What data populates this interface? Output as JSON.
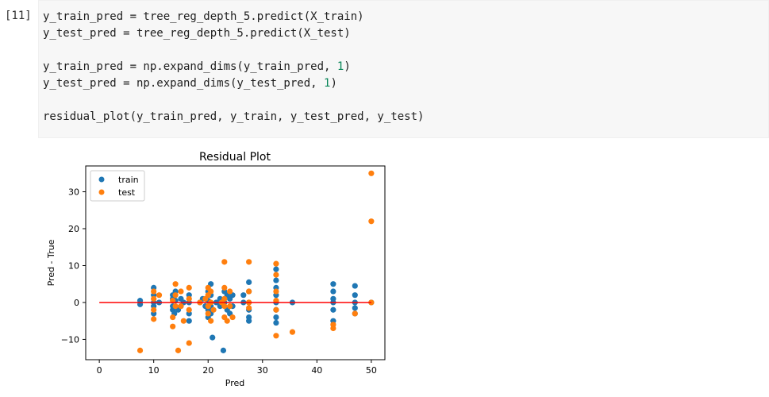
{
  "cell": {
    "prompt": "[11]",
    "code_lines": [
      {
        "segments": [
          {
            "t": "y_train_pred = tree_reg_depth_5.predict(X_train)"
          }
        ]
      },
      {
        "segments": [
          {
            "t": "y_test_pred = tree_reg_depth_5.predict(X_test)"
          }
        ]
      },
      {
        "blank": true
      },
      {
        "segments": [
          {
            "t": "y_train_pred = np.expand_dims(y_train_pred, "
          },
          {
            "t": "1",
            "num": true
          },
          {
            "t": ")"
          }
        ]
      },
      {
        "segments": [
          {
            "t": "y_test_pred = np.expand_dims(y_test_pred, "
          },
          {
            "t": "1",
            "num": true
          },
          {
            "t": ")"
          }
        ]
      },
      {
        "blank": true
      },
      {
        "segments": [
          {
            "t": "residual_plot(y_train_pred, y_train, y_test_pred, y_test)"
          }
        ]
      }
    ]
  },
  "colors": {
    "train": "#1f77b4",
    "test": "#ff7f0e",
    "zero_line": "#ff0000",
    "code_bg": "#f7f7f7"
  },
  "chart_data": {
    "type": "scatter",
    "title": "Residual Plot",
    "xlabel": "Pred",
    "ylabel": "Pred - True",
    "xlim": [
      -2.5,
      52.5
    ],
    "ylim": [
      -15.5,
      37
    ],
    "xticks": [
      0,
      10,
      20,
      30,
      40,
      50
    ],
    "yticks": [
      -10,
      0,
      10,
      20,
      30
    ],
    "grid": false,
    "legend_position": "top-left",
    "hline": {
      "y": 0,
      "xmin": 0,
      "xmax": 50
    },
    "series": [
      {
        "name": "train",
        "points": [
          [
            7.5,
            0.5
          ],
          [
            7.5,
            -0.5
          ],
          [
            10,
            4
          ],
          [
            10,
            2
          ],
          [
            10,
            0
          ],
          [
            10,
            -1
          ],
          [
            10,
            -3
          ],
          [
            11,
            0
          ],
          [
            13.5,
            2
          ],
          [
            13.5,
            1
          ],
          [
            13.5,
            -1
          ],
          [
            13.5,
            -2
          ],
          [
            13.8,
            -3
          ],
          [
            14,
            3
          ],
          [
            14,
            0.5
          ],
          [
            14.5,
            -2
          ],
          [
            15,
            1
          ],
          [
            15,
            -1
          ],
          [
            15.5,
            0
          ],
          [
            16.5,
            2
          ],
          [
            16.5,
            0
          ],
          [
            16.5,
            -3
          ],
          [
            16.5,
            -5
          ],
          [
            18.5,
            0
          ],
          [
            19,
            1
          ],
          [
            19.5,
            -1
          ],
          [
            20,
            3
          ],
          [
            20,
            0.5
          ],
          [
            20,
            -2
          ],
          [
            20,
            -4
          ],
          [
            20.5,
            5
          ],
          [
            20.5,
            2
          ],
          [
            20.5,
            -1
          ],
          [
            20.5,
            -3
          ],
          [
            20.8,
            -9.5
          ],
          [
            21.5,
            0
          ],
          [
            22.2,
            1
          ],
          [
            22.2,
            -1
          ],
          [
            22.8,
            -13
          ],
          [
            23,
            3
          ],
          [
            23,
            0
          ],
          [
            23.5,
            2
          ],
          [
            23.5,
            -2
          ],
          [
            24,
            1
          ],
          [
            24,
            -3
          ],
          [
            24.5,
            2
          ],
          [
            24.5,
            -1
          ],
          [
            26.5,
            2
          ],
          [
            26.5,
            0
          ],
          [
            27.5,
            5.5
          ],
          [
            27.5,
            3
          ],
          [
            27.5,
            0
          ],
          [
            27.5,
            -2
          ],
          [
            27.5,
            -4
          ],
          [
            27.5,
            -5
          ],
          [
            32.5,
            9
          ],
          [
            32.5,
            6
          ],
          [
            32.5,
            4
          ],
          [
            32.5,
            2
          ],
          [
            32.5,
            0
          ],
          [
            32.5,
            -2
          ],
          [
            32.5,
            -4
          ],
          [
            32.5,
            -5.5
          ],
          [
            35.5,
            0
          ],
          [
            43,
            5
          ],
          [
            43,
            3
          ],
          [
            43,
            1
          ],
          [
            43,
            0
          ],
          [
            43,
            -2
          ],
          [
            43,
            -5
          ],
          [
            47,
            4.5
          ],
          [
            47,
            2
          ],
          [
            47,
            0
          ],
          [
            47,
            -1.5
          ],
          [
            47,
            -3
          ],
          [
            50,
            0
          ]
        ]
      },
      {
        "name": "test",
        "points": [
          [
            7.5,
            -13
          ],
          [
            10,
            3
          ],
          [
            10,
            1
          ],
          [
            10,
            -2
          ],
          [
            10,
            -4.5
          ],
          [
            11,
            2
          ],
          [
            13.5,
            0.5
          ],
          [
            13.5,
            -4
          ],
          [
            13.5,
            -6.5
          ],
          [
            14,
            5
          ],
          [
            14,
            2
          ],
          [
            14,
            -1
          ],
          [
            14.5,
            -13
          ],
          [
            15,
            3
          ],
          [
            15,
            -1
          ],
          [
            15.5,
            -5
          ],
          [
            16.5,
            4
          ],
          [
            16.5,
            1
          ],
          [
            16.5,
            -2
          ],
          [
            16.5,
            -11
          ],
          [
            18.5,
            0
          ],
          [
            19.5,
            1
          ],
          [
            20,
            4
          ],
          [
            20,
            2
          ],
          [
            20,
            -1
          ],
          [
            20,
            -3
          ],
          [
            20.5,
            3
          ],
          [
            20.5,
            0
          ],
          [
            20.5,
            -5
          ],
          [
            21,
            -2
          ],
          [
            22.5,
            0
          ],
          [
            23,
            11
          ],
          [
            23,
            4
          ],
          [
            23,
            1
          ],
          [
            23,
            -1
          ],
          [
            23,
            -4
          ],
          [
            23.5,
            -5
          ],
          [
            24,
            3
          ],
          [
            24,
            -1
          ],
          [
            24.5,
            -4
          ],
          [
            27.5,
            11
          ],
          [
            27.5,
            3
          ],
          [
            27.5,
            0
          ],
          [
            27.5,
            -1.5
          ],
          [
            32.5,
            10.5
          ],
          [
            32.5,
            7.5
          ],
          [
            32.5,
            3
          ],
          [
            32.5,
            0.5
          ],
          [
            32.5,
            -2
          ],
          [
            32.5,
            -9
          ],
          [
            35.5,
            -8
          ],
          [
            43,
            -6
          ],
          [
            43,
            -7
          ],
          [
            47,
            -3
          ],
          [
            50,
            35
          ],
          [
            50,
            22
          ],
          [
            50,
            0
          ]
        ]
      }
    ]
  }
}
